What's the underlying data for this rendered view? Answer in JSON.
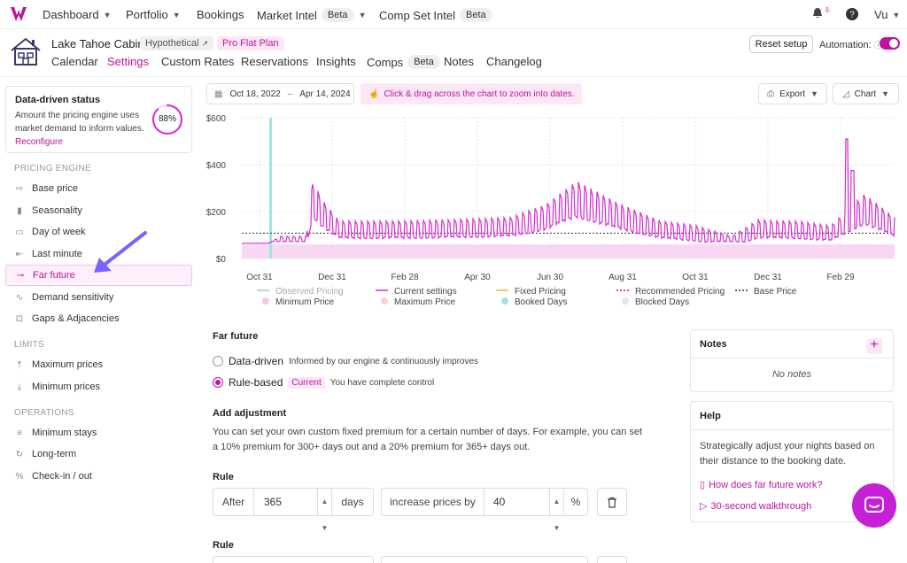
{
  "topnav": {
    "items": [
      {
        "label": "Dashboard"
      },
      {
        "label": "Portfolio"
      },
      {
        "label": "Bookings"
      },
      {
        "label": "Market Intel",
        "badge": "Beta"
      },
      {
        "label": "Comp Set Intel",
        "badge": "Beta"
      }
    ],
    "notification_count": "1",
    "user": "Vu"
  },
  "property": {
    "name": "Lake Tahoe Cabin",
    "hypothetical_badge": "Hypothetical",
    "plan_badge": "Pro Flat Plan",
    "reset_label": "Reset setup",
    "automation_label": "Automation:",
    "automation_on": true
  },
  "tabs": [
    {
      "label": "Calendar"
    },
    {
      "label": "Settings",
      "active": true
    },
    {
      "label": "Custom Rates"
    },
    {
      "label": "Reservations"
    },
    {
      "label": "Insights"
    },
    {
      "label": "Comps",
      "badge": "Beta"
    },
    {
      "label": "Notes"
    },
    {
      "label": "Changelog"
    }
  ],
  "status_card": {
    "title": "Data-driven status",
    "description": "Amount the pricing engine uses market demand to inform values.",
    "link": "Reconfigure",
    "percent": "88%",
    "percent_value": 0.88
  },
  "sidebar": {
    "pricing_engine_label": "PRICING ENGINE",
    "pricing_items": [
      {
        "label": "Base price",
        "icon": "base-price-icon"
      },
      {
        "label": "Seasonality",
        "icon": "seasonality-icon"
      },
      {
        "label": "Day of week",
        "icon": "day-of-week-icon"
      },
      {
        "label": "Last minute",
        "icon": "last-minute-icon"
      },
      {
        "label": "Far future",
        "icon": "far-future-icon",
        "active": true
      },
      {
        "label": "Demand sensitivity",
        "icon": "demand-icon"
      },
      {
        "label": "Gaps & Adjacencies",
        "icon": "gaps-icon"
      }
    ],
    "limits_label": "LIMITS",
    "limits_items": [
      {
        "label": "Maximum prices",
        "icon": "max-price-icon"
      },
      {
        "label": "Minimum prices",
        "icon": "min-price-icon"
      }
    ],
    "operations_label": "OPERATIONS",
    "operations_items": [
      {
        "label": "Minimum stays",
        "icon": "min-stay-icon"
      },
      {
        "label": "Long-term",
        "icon": "long-term-icon"
      },
      {
        "label": "Check-in / out",
        "icon": "checkin-icon"
      }
    ]
  },
  "chart_toolbar": {
    "date_from": "Oct 18, 2022",
    "date_sep": "–",
    "date_to": "Apr 14, 2024",
    "hint": "Click & drag across the chart to zoom into dates.",
    "export_label": "Export",
    "chart_label": "Chart"
  },
  "chart_data": {
    "type": "line",
    "y_ticks": [
      "$600",
      "$400",
      "$200",
      "$0"
    ],
    "ylim": [
      0,
      600
    ],
    "x_ticks": [
      "Oct 31",
      "Dec 31",
      "Feb 28",
      "Apr 30",
      "Jun 30",
      "Aug 31",
      "Oct 31",
      "Dec 31",
      "Feb 29"
    ],
    "base_price": 108,
    "series": [
      {
        "name": "Current settings",
        "color": "#d62ad0",
        "shape": "peaks_daily"
      },
      {
        "name": "Base Price",
        "color": "#333333",
        "value": 108
      }
    ],
    "legend": [
      {
        "label": "Observed Pricing",
        "style": "line",
        "color": "#bbbbbb"
      },
      {
        "label": "Current settings",
        "style": "line",
        "color": "#d62ad0"
      },
      {
        "label": "Fixed Pricing",
        "style": "line",
        "color": "#f4b63c"
      },
      {
        "label": "Recommended Pricing",
        "style": "dotted",
        "color": "#c0129f"
      },
      {
        "label": "Base Price",
        "style": "dotted",
        "color": "#333333"
      },
      {
        "label": "Minimum Price",
        "style": "dot",
        "color": "#f7c6ee"
      },
      {
        "label": "Maximum Price",
        "style": "dot",
        "color": "#fbd0d8"
      },
      {
        "label": "Booked Days",
        "style": "dot",
        "color": "#9ee6df"
      },
      {
        "label": "Blocked Days",
        "style": "dot",
        "color": "#e6e6e6"
      }
    ],
    "legend_position": "bottom"
  },
  "far_future": {
    "title": "Far future",
    "option_data_driven": "Data-driven",
    "option_data_driven_desc": "Informed by our engine & continuously improves",
    "option_rule_based": "Rule-based",
    "current_badge": "Current",
    "option_rule_based_desc": "You have complete control",
    "add_adjustment_title": "Add adjustment",
    "add_adjustment_desc": "You can set your own custom fixed premium for a certain number of days. For example, you can set a 10% premium for 300+ days out and a 20% premium for 365+ days out.",
    "rules": [
      {
        "label": "Rule",
        "after_label": "After",
        "days_value": "365",
        "days_unit": "days",
        "action_label": "increase prices by",
        "amount_value": "40",
        "amount_unit": "%"
      },
      {
        "label": "Rule"
      }
    ]
  },
  "notes_card": {
    "title": "Notes",
    "empty": "No notes"
  },
  "help_card": {
    "title": "Help",
    "text": "Strategically adjust your nights based on their distance to the booking date.",
    "link1": "How does far future work?",
    "link2": "30-second walkthrough"
  }
}
